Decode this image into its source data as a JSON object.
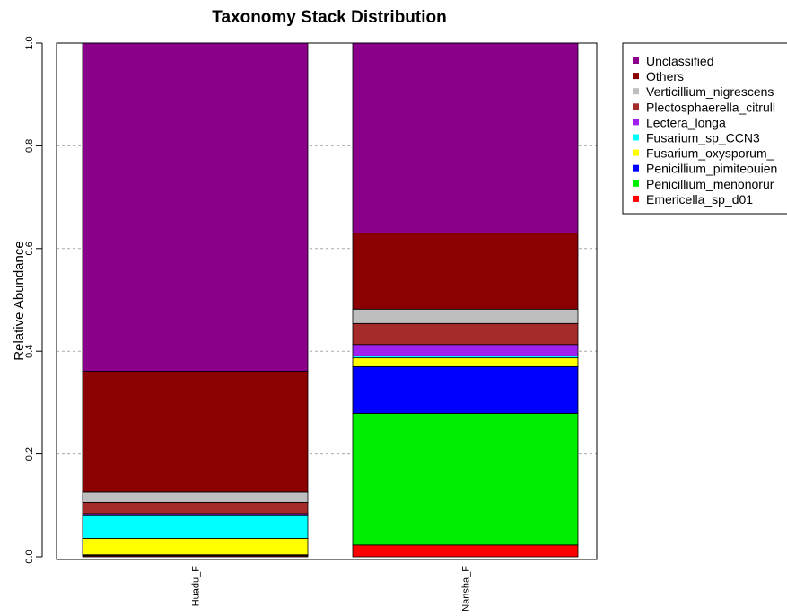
{
  "chart_data": {
    "type": "bar",
    "stacked": true,
    "title": "Taxonomy Stack Distribution",
    "xlabel": "",
    "ylabel": "Relative Abundance",
    "ylim": [
      0,
      1.0
    ],
    "yticks": [
      "0.0",
      "0.2",
      "0.4",
      "0.6",
      "0.8",
      "1.0"
    ],
    "grid": "horizontal dashed",
    "legend_position": "top-right",
    "categories": [
      "Huadu_F",
      "Nansha_F"
    ],
    "series": [
      {
        "name": "Emericella_sp_d01",
        "color": "#ff0000",
        "values": [
          0.002,
          0.023
        ]
      },
      {
        "name": "Penicillium_menonorum",
        "color": "#00ee00",
        "values": [
          0.001,
          0.256
        ]
      },
      {
        "name": "Penicillium_pimiteouiense",
        "color": "#0000ff",
        "values": [
          0.001,
          0.091
        ]
      },
      {
        "name": "Fusarium_oxysporum_",
        "color": "#ffff00",
        "values": [
          0.032,
          0.017
        ]
      },
      {
        "name": "Fusarium_sp_CCN3",
        "color": "#00ffff",
        "values": [
          0.044,
          0.004
        ]
      },
      {
        "name": "Lectera_longa",
        "color": "#a020f0",
        "values": [
          0.004,
          0.022
        ]
      },
      {
        "name": "Plectosphaerella_citrulli",
        "color": "#a52a2a",
        "values": [
          0.022,
          0.041
        ]
      },
      {
        "name": "Verticillium_nigrescens",
        "color": "#bebebe",
        "values": [
          0.02,
          0.028
        ]
      },
      {
        "name": "Others",
        "color": "#8b0000",
        "values": [
          0.235,
          0.148
        ]
      },
      {
        "name": "Unclassified",
        "color": "#8b008b",
        "values": [
          0.639,
          0.37
        ]
      }
    ],
    "legend_entries": [
      {
        "label": "Unclassified",
        "color": "#8b008b"
      },
      {
        "label": "Others",
        "color": "#8b0000"
      },
      {
        "label": "Verticillium_nigrescens",
        "color": "#bebebe"
      },
      {
        "label": "Plectosphaerella_citrull",
        "color": "#a52a2a"
      },
      {
        "label": "Lectera_longa",
        "color": "#a020f0"
      },
      {
        "label": "Fusarium_sp_CCN3",
        "color": "#00ffff"
      },
      {
        "label": "Fusarium_oxysporum_",
        "color": "#ffff00"
      },
      {
        "label": "Penicillium_pimiteouien",
        "color": "#0000ff"
      },
      {
        "label": "Penicillium_menonorur",
        "color": "#00ee00"
      },
      {
        "label": "Emericella_sp_d01",
        "color": "#ff0000"
      }
    ]
  }
}
